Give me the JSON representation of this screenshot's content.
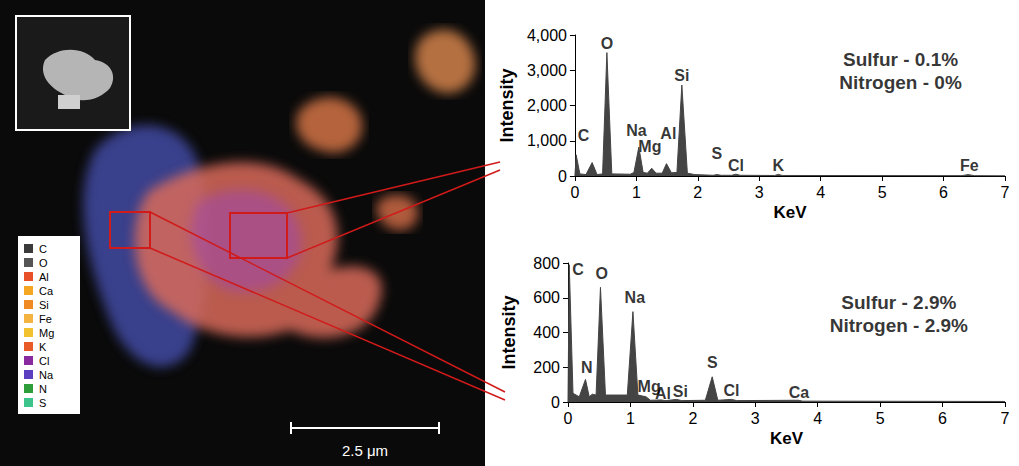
{
  "chart_data": [
    {
      "type": "area",
      "x_label": "KeV",
      "y_label": "Intensity",
      "color": "#444444",
      "x": [
        0,
        0.02,
        0.08,
        0.18,
        0.28,
        0.36,
        0.45,
        0.52,
        0.6,
        0.9,
        0.96,
        1.04,
        1.11,
        1.18,
        1.25,
        1.32,
        1.42,
        1.49,
        1.57,
        1.66,
        1.74,
        1.83,
        1.95,
        2.25,
        2.31,
        2.38,
        2.55,
        2.62,
        2.69,
        3.25,
        3.31,
        3.38,
        6.3,
        6.4,
        6.5,
        7
      ],
      "values": [
        0,
        600,
        60,
        40,
        380,
        40,
        60,
        3500,
        60,
        50,
        100,
        820,
        100,
        80,
        220,
        80,
        80,
        350,
        90,
        100,
        2580,
        80,
        40,
        20,
        40,
        20,
        20,
        50,
        20,
        15,
        45,
        15,
        10,
        40,
        10,
        5
      ],
      "xlim": [
        0,
        7
      ],
      "xticks": [
        0,
        1,
        2,
        3,
        4,
        5,
        6,
        7
      ],
      "ylim": [
        0,
        4000
      ],
      "yticks": [
        0,
        1000,
        2000,
        3000,
        4000
      ],
      "annotations": [
        {
          "text": "C",
          "x": 0.14,
          "y": 1150
        },
        {
          "text": "O",
          "x": 0.52,
          "y": 3750
        },
        {
          "text": "Na",
          "x": 1.0,
          "y": 1300
        },
        {
          "text": "Mg",
          "x": 1.22,
          "y": 850
        },
        {
          "text": "Al",
          "x": 1.52,
          "y": 1200
        },
        {
          "text": "Si",
          "x": 1.74,
          "y": 2850
        },
        {
          "text": "S",
          "x": 2.31,
          "y": 650
        },
        {
          "text": "Cl",
          "x": 2.62,
          "y": 300
        },
        {
          "text": "K",
          "x": 3.31,
          "y": 300
        },
        {
          "text": "Fe",
          "x": 6.42,
          "y": 300
        },
        {
          "text": "Sulfur - 0.1%",
          "x": 5.3,
          "y": 3300
        },
        {
          "text": "Nitrogen - 0%",
          "x": 5.3,
          "y": 2650
        }
      ]
    },
    {
      "type": "area",
      "x_label": "KeV",
      "y_label": "Intensity",
      "color": "#444444",
      "x": [
        0,
        0.02,
        0.08,
        0.18,
        0.28,
        0.34,
        0.39,
        0.45,
        0.52,
        0.6,
        0.95,
        1.04,
        1.12,
        1.25,
        1.32,
        1.49,
        1.56,
        1.74,
        1.82,
        2.2,
        2.31,
        2.4,
        2.62,
        2.7,
        3.69,
        3.76,
        7
      ],
      "values": [
        0,
        790,
        50,
        30,
        130,
        30,
        45,
        40,
        660,
        40,
        40,
        520,
        40,
        30,
        10,
        12,
        8,
        15,
        8,
        10,
        145,
        10,
        15,
        8,
        10,
        5,
        3
      ],
      "xlim": [
        0,
        7
      ],
      "xticks": [
        0,
        1,
        2,
        3,
        4,
        5,
        6,
        7
      ],
      "ylim": [
        0,
        800
      ],
      "yticks": [
        0,
        200,
        400,
        600,
        800
      ],
      "annotations": [
        {
          "text": "C",
          "x": 0.16,
          "y": 760
        },
        {
          "text": "O",
          "x": 0.54,
          "y": 740
        },
        {
          "text": "Na",
          "x": 1.07,
          "y": 600
        },
        {
          "text": "N",
          "x": 0.3,
          "y": 200
        },
        {
          "text": "Mg",
          "x": 1.3,
          "y": 90
        },
        {
          "text": "Al",
          "x": 1.52,
          "y": 50
        },
        {
          "text": "Si",
          "x": 1.8,
          "y": 60
        },
        {
          "text": "S",
          "x": 2.31,
          "y": 230
        },
        {
          "text": "Cl",
          "x": 2.62,
          "y": 65
        },
        {
          "text": "Ca",
          "x": 3.7,
          "y": 55
        },
        {
          "text": "Sulfur - 2.9%",
          "x": 5.3,
          "y": 570
        },
        {
          "text": "Nitrogen - 2.9%",
          "x": 5.3,
          "y": 440
        }
      ]
    }
  ],
  "map": {
    "scale_bar": "2.5 μm",
    "legend": [
      {
        "label": "C",
        "color": "#3a3a3a"
      },
      {
        "label": "O",
        "color": "#555555"
      },
      {
        "label": "Al",
        "color": "#e8502a"
      },
      {
        "label": "Ca",
        "color": "#f5a623"
      },
      {
        "label": "Si",
        "color": "#f08a24"
      },
      {
        "label": "Fe",
        "color": "#f5b342"
      },
      {
        "label": "Mg",
        "color": "#f2c230"
      },
      {
        "label": "K",
        "color": "#e85a28"
      },
      {
        "label": "Cl",
        "color": "#8a2aa0"
      },
      {
        "label": "Na",
        "color": "#5a3fc0"
      },
      {
        "label": "N",
        "color": "#2e9e3a"
      },
      {
        "label": "S",
        "color": "#3cc48a"
      }
    ]
  }
}
